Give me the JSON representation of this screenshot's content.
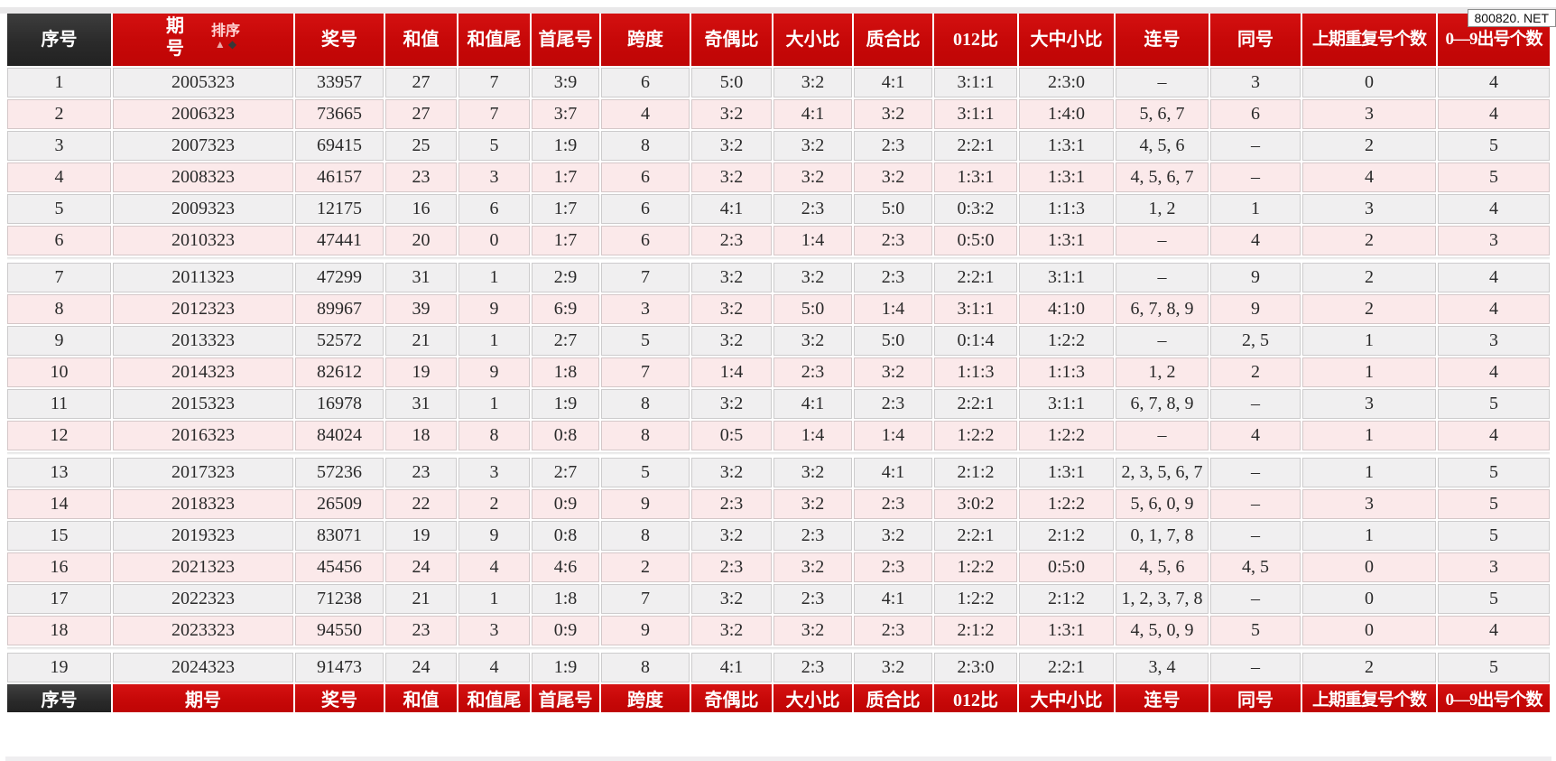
{
  "watermark": "800820. NET",
  "table": {
    "columns": [
      {
        "key": "serial",
        "label": "序号"
      },
      {
        "key": "period",
        "label": "期号"
      },
      {
        "key": "prize-number",
        "label": "奖号"
      },
      {
        "key": "sum",
        "label": "和值"
      },
      {
        "key": "sum-tail",
        "label": "和值尾"
      },
      {
        "key": "min-max",
        "label": "首尾号"
      },
      {
        "key": "span",
        "label": "跨度"
      },
      {
        "key": "odd-even-ratio",
        "label": "奇偶比"
      },
      {
        "key": "big-small-ratio",
        "label": "大小比"
      },
      {
        "key": "prime-composite-ratio",
        "label": "质合比"
      },
      {
        "key": "012-ratio",
        "label": "012比"
      },
      {
        "key": "big-mid-small-ratio",
        "label": "大中小比"
      },
      {
        "key": "consecutive",
        "label": "连号"
      },
      {
        "key": "same-number",
        "label": "同号"
      },
      {
        "key": "prev-repeat-count",
        "label": "上期重复号个数"
      },
      {
        "key": "digit-appear-count",
        "label": "0—9出号个数"
      }
    ],
    "sort_control": {
      "label": "排序",
      "asc_icon": "▲",
      "desc_icon": "◆"
    },
    "group_size": 6,
    "rows": [
      [
        "1",
        "2005323",
        "33957",
        "27",
        "7",
        "3:9",
        "6",
        "5:0",
        "3:2",
        "4:1",
        "3:1:1",
        "2:3:0",
        "–",
        "3",
        "0",
        "4"
      ],
      [
        "2",
        "2006323",
        "73665",
        "27",
        "7",
        "3:7",
        "4",
        "3:2",
        "4:1",
        "3:2",
        "3:1:1",
        "1:4:0",
        "5, 6, 7",
        "6",
        "3",
        "4"
      ],
      [
        "3",
        "2007323",
        "69415",
        "25",
        "5",
        "1:9",
        "8",
        "3:2",
        "3:2",
        "2:3",
        "2:2:1",
        "1:3:1",
        "4, 5, 6",
        "–",
        "2",
        "5"
      ],
      [
        "4",
        "2008323",
        "46157",
        "23",
        "3",
        "1:7",
        "6",
        "3:2",
        "3:2",
        "3:2",
        "1:3:1",
        "1:3:1",
        "4, 5, 6, 7",
        "–",
        "4",
        "5"
      ],
      [
        "5",
        "2009323",
        "12175",
        "16",
        "6",
        "1:7",
        "6",
        "4:1",
        "2:3",
        "5:0",
        "0:3:2",
        "1:1:3",
        "1, 2",
        "1",
        "3",
        "4"
      ],
      [
        "6",
        "2010323",
        "47441",
        "20",
        "0",
        "1:7",
        "6",
        "2:3",
        "1:4",
        "2:3",
        "0:5:0",
        "1:3:1",
        "–",
        "4",
        "2",
        "3"
      ],
      [
        "7",
        "2011323",
        "47299",
        "31",
        "1",
        "2:9",
        "7",
        "3:2",
        "3:2",
        "2:3",
        "2:2:1",
        "3:1:1",
        "–",
        "9",
        "2",
        "4"
      ],
      [
        "8",
        "2012323",
        "89967",
        "39",
        "9",
        "6:9",
        "3",
        "3:2",
        "5:0",
        "1:4",
        "3:1:1",
        "4:1:0",
        "6, 7, 8, 9",
        "9",
        "2",
        "4"
      ],
      [
        "9",
        "2013323",
        "52572",
        "21",
        "1",
        "2:7",
        "5",
        "3:2",
        "3:2",
        "5:0",
        "0:1:4",
        "1:2:2",
        "–",
        "2, 5",
        "1",
        "3"
      ],
      [
        "10",
        "2014323",
        "82612",
        "19",
        "9",
        "1:8",
        "7",
        "1:4",
        "2:3",
        "3:2",
        "1:1:3",
        "1:1:3",
        "1, 2",
        "2",
        "1",
        "4"
      ],
      [
        "11",
        "2015323",
        "16978",
        "31",
        "1",
        "1:9",
        "8",
        "3:2",
        "4:1",
        "2:3",
        "2:2:1",
        "3:1:1",
        "6, 7, 8, 9",
        "–",
        "3",
        "5"
      ],
      [
        "12",
        "2016323",
        "84024",
        "18",
        "8",
        "0:8",
        "8",
        "0:5",
        "1:4",
        "1:4",
        "1:2:2",
        "1:2:2",
        "–",
        "4",
        "1",
        "4"
      ],
      [
        "13",
        "2017323",
        "57236",
        "23",
        "3",
        "2:7",
        "5",
        "3:2",
        "3:2",
        "4:1",
        "2:1:2",
        "1:3:1",
        "2, 3, 5, 6, 7",
        "–",
        "1",
        "5"
      ],
      [
        "14",
        "2018323",
        "26509",
        "22",
        "2",
        "0:9",
        "9",
        "2:3",
        "3:2",
        "2:3",
        "3:0:2",
        "1:2:2",
        "5, 6, 0, 9",
        "–",
        "3",
        "5"
      ],
      [
        "15",
        "2019323",
        "83071",
        "19",
        "9",
        "0:8",
        "8",
        "3:2",
        "2:3",
        "3:2",
        "2:2:1",
        "2:1:2",
        "0, 1, 7, 8",
        "–",
        "1",
        "5"
      ],
      [
        "16",
        "2021323",
        "45456",
        "24",
        "4",
        "4:6",
        "2",
        "2:3",
        "3:2",
        "2:3",
        "1:2:2",
        "0:5:0",
        "4, 5, 6",
        "4, 5",
        "0",
        "3"
      ],
      [
        "17",
        "2022323",
        "71238",
        "21",
        "1",
        "1:8",
        "7",
        "3:2",
        "2:3",
        "4:1",
        "1:2:2",
        "2:1:2",
        "1, 2, 3, 7, 8",
        "–",
        "0",
        "5"
      ],
      [
        "18",
        "2023323",
        "94550",
        "23",
        "3",
        "0:9",
        "9",
        "3:2",
        "3:2",
        "2:3",
        "2:1:2",
        "1:3:1",
        "4, 5, 0, 9",
        "5",
        "0",
        "4"
      ],
      [
        "19",
        "2024323",
        "91473",
        "24",
        "4",
        "1:9",
        "8",
        "4:1",
        "2:3",
        "3:2",
        "2:3:0",
        "2:2:1",
        "3, 4",
        "–",
        "2",
        "5"
      ]
    ]
  },
  "colors": {
    "header_red": "#c70808",
    "header_dark": "#2a2a2a",
    "row_gray": "#f0eff0",
    "row_pink": "#fbe9ea",
    "prize_cell": "#ffffff",
    "header_text": "#ffffff",
    "cell_text": "#2a2a2a",
    "sort_asc": "#eba8a8",
    "sort_desc": "#383838"
  }
}
